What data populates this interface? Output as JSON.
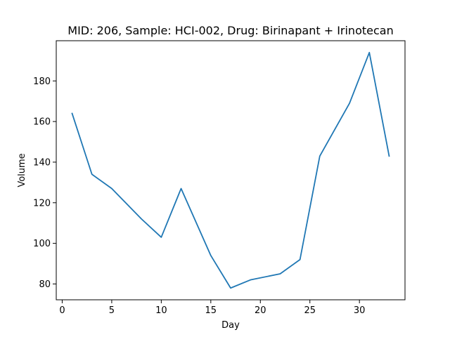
{
  "chart_data": {
    "type": "line",
    "title": "MID: 206, Sample: HCI-002, Drug: Birinapant + Irinotecan",
    "xlabel": "Day",
    "ylabel": "Volume",
    "xlim": [
      -0.6,
      34.6
    ],
    "ylim": [
      72.2,
      199.8
    ],
    "xticks": [
      0,
      5,
      10,
      15,
      20,
      25,
      30
    ],
    "yticks": [
      80,
      100,
      120,
      140,
      160,
      180
    ],
    "grid": false,
    "series": [
      {
        "color": "#1f77b4",
        "x": [
          1,
          3,
          5,
          8,
          10,
          12,
          15,
          17,
          19,
          22,
          24,
          26,
          29,
          31,
          33
        ],
        "y": [
          164,
          134,
          127,
          112,
          103,
          127,
          94,
          78,
          82,
          85,
          92,
          143,
          169,
          194,
          143
        ]
      }
    ]
  }
}
